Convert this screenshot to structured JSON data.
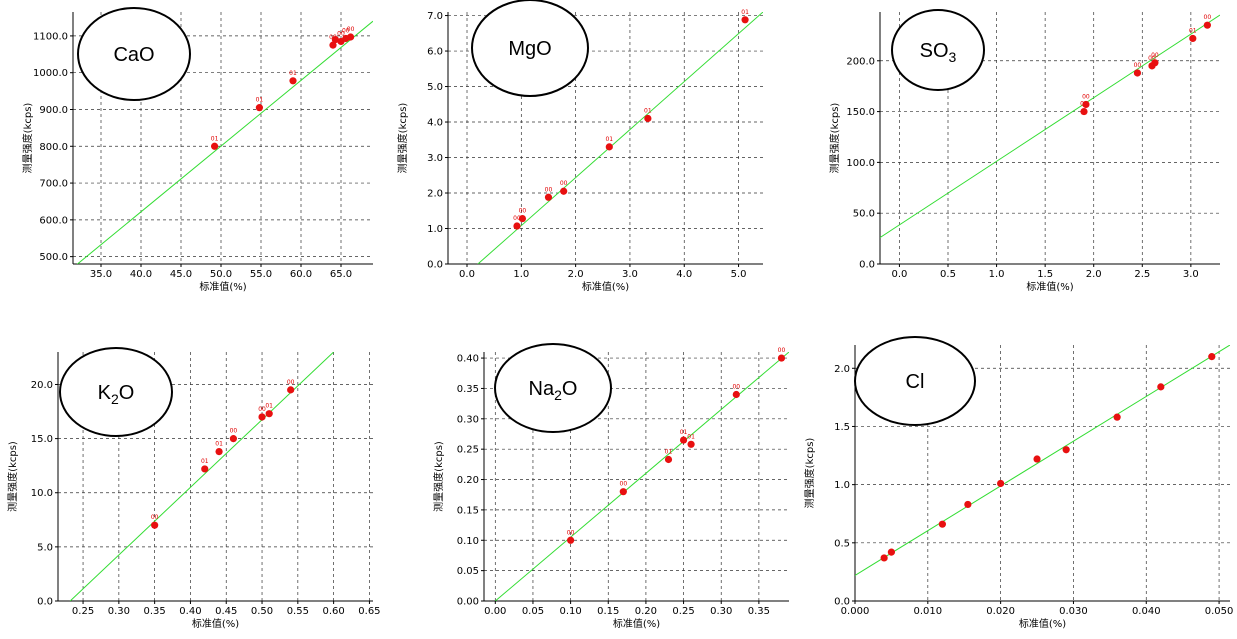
{
  "colors": {
    "point": "#e81010",
    "fit_line": "#33dd33",
    "point_label": "#e00000",
    "grid": "#000000"
  },
  "chart_data": [
    {
      "type": "scatter",
      "badge": {
        "main": "CaO",
        "sub": ""
      },
      "xlabel": "标准值(%)",
      "ylabel": "测量强度(kcps)",
      "xlim": [
        31.5,
        69.0
      ],
      "ylim": [
        480,
        1165
      ],
      "xticks": [
        "35.0",
        "40.0",
        "45.0",
        "50.0",
        "55.0",
        "60.0",
        "65.0"
      ],
      "yticks": [
        "500.0",
        "600.0",
        "700.0",
        "800.0",
        "900.0",
        "1000.0",
        "1100.0"
      ],
      "grid": true,
      "fit_line": [
        [
          31.5,
          470
        ],
        [
          69.0,
          1140
        ]
      ],
      "points": [
        {
          "x": 49.2,
          "y": 800,
          "label": "01"
        },
        {
          "x": 54.8,
          "y": 905,
          "label": "01"
        },
        {
          "x": 59.0,
          "y": 978,
          "label": "01"
        },
        {
          "x": 64.0,
          "y": 1075,
          "label": "00"
        },
        {
          "x": 64.3,
          "y": 1090,
          "label": ""
        },
        {
          "x": 65.0,
          "y": 1085,
          "label": "00"
        },
        {
          "x": 65.6,
          "y": 1093,
          "label": "00"
        },
        {
          "x": 66.2,
          "y": 1097,
          "label": "00"
        }
      ]
    },
    {
      "type": "scatter",
      "badge": {
        "main": "MgO",
        "sub": ""
      },
      "xlabel": "标准值(%)",
      "ylabel": "测量强度(kcps)",
      "xlim": [
        -0.35,
        5.45
      ],
      "ylim": [
        0.0,
        7.1
      ],
      "xticks": [
        "0.0",
        "1.0",
        "2.0",
        "3.0",
        "4.0",
        "5.0"
      ],
      "yticks": [
        "0.0",
        "1.0",
        "2.0",
        "3.0",
        "4.0",
        "5.0",
        "6.0",
        "7.0"
      ],
      "grid": true,
      "fit_line": [
        [
          0.2,
          0.0
        ],
        [
          5.45,
          7.1
        ]
      ],
      "points": [
        {
          "x": 0.92,
          "y": 1.07,
          "label": "00"
        },
        {
          "x": 1.02,
          "y": 1.28,
          "label": "00"
        },
        {
          "x": 1.5,
          "y": 1.88,
          "label": "00"
        },
        {
          "x": 1.78,
          "y": 2.05,
          "label": "00"
        },
        {
          "x": 2.62,
          "y": 3.3,
          "label": "01"
        },
        {
          "x": 3.33,
          "y": 4.1,
          "label": "01"
        },
        {
          "x": 5.12,
          "y": 6.88,
          "label": "01"
        }
      ]
    },
    {
      "type": "scatter",
      "badge": {
        "main": "SO",
        "sub": "3"
      },
      "xlabel": "标准值(%)",
      "ylabel": "测量强度(kcps)",
      "xlim": [
        -0.2,
        3.3
      ],
      "ylim": [
        0.0,
        248
      ],
      "xticks": [
        "0.0",
        "0.5",
        "1.0",
        "1.5",
        "2.0",
        "2.5",
        "3.0"
      ],
      "yticks": [
        "0.0",
        "50.0",
        "100.0",
        "150.0",
        "200.0"
      ],
      "grid": true,
      "fit_line": [
        [
          -0.2,
          26
        ],
        [
          3.3,
          245
        ]
      ],
      "points": [
        {
          "x": 1.9,
          "y": 150,
          "label": "00"
        },
        {
          "x": 1.92,
          "y": 157,
          "label": "00"
        },
        {
          "x": 2.45,
          "y": 188,
          "label": "00"
        },
        {
          "x": 2.6,
          "y": 195,
          "label": "00"
        },
        {
          "x": 2.63,
          "y": 198,
          "label": "00"
        },
        {
          "x": 3.02,
          "y": 222,
          "label": "01"
        },
        {
          "x": 3.17,
          "y": 235,
          "label": "00"
        }
      ]
    },
    {
      "type": "scatter",
      "badge": {
        "main": "K",
        "sub": "2",
        "post": "O"
      },
      "xlabel": "标准值(%)",
      "ylabel": "测量强度(kcps)",
      "xlim": [
        0.215,
        0.655
      ],
      "ylim": [
        0.0,
        23.0
      ],
      "xticks": [
        "0.25",
        "0.30",
        "0.35",
        "0.40",
        "0.45",
        "0.50",
        "0.55",
        "0.60",
        "0.65"
      ],
      "yticks": [
        "0.0",
        "5.0",
        "10.0",
        "15.0",
        "20.0"
      ],
      "grid": true,
      "fit_line": [
        [
          0.232,
          0.0
        ],
        [
          0.6,
          23.0
        ]
      ],
      "points": [
        {
          "x": 0.35,
          "y": 7.0,
          "label": "00"
        },
        {
          "x": 0.42,
          "y": 12.2,
          "label": "01"
        },
        {
          "x": 0.44,
          "y": 13.8,
          "label": "01"
        },
        {
          "x": 0.46,
          "y": 15.0,
          "label": "00"
        },
        {
          "x": 0.5,
          "y": 17.0,
          "label": "00"
        },
        {
          "x": 0.51,
          "y": 17.3,
          "label": "01"
        },
        {
          "x": 0.54,
          "y": 19.5,
          "label": "00"
        }
      ]
    },
    {
      "type": "scatter",
      "badge": {
        "main": "Na",
        "sub": "2",
        "post": "O"
      },
      "xlabel": "标准值(%)",
      "ylabel": "测量强度(kcps)",
      "xlim": [
        -0.015,
        0.39
      ],
      "ylim": [
        0.0,
        0.41
      ],
      "xticks": [
        "0.00",
        "0.05",
        "0.10",
        "0.15",
        "0.20",
        "0.25",
        "0.30",
        "0.35"
      ],
      "yticks": [
        "0.00",
        "0.05",
        "0.10",
        "0.15",
        "0.20",
        "0.25",
        "0.30",
        "0.35",
        "0.40"
      ],
      "grid": true,
      "fit_line": [
        [
          0.0,
          0.0
        ],
        [
          0.39,
          0.41
        ]
      ],
      "points": [
        {
          "x": 0.1,
          "y": 0.1,
          "label": "00"
        },
        {
          "x": 0.17,
          "y": 0.18,
          "label": "00"
        },
        {
          "x": 0.23,
          "y": 0.233,
          "label": "01"
        },
        {
          "x": 0.25,
          "y": 0.265,
          "label": "01"
        },
        {
          "x": 0.26,
          "y": 0.258,
          "label": "01"
        },
        {
          "x": 0.32,
          "y": 0.34,
          "label": "00"
        },
        {
          "x": 0.38,
          "y": 0.4,
          "label": "00"
        }
      ]
    },
    {
      "type": "scatter",
      "badge": {
        "main": "Cl",
        "sub": ""
      },
      "xlabel": "标准值(%)",
      "ylabel": "测量强度(kcps)",
      "xlim": [
        0.0,
        0.0515
      ],
      "ylim": [
        0.0,
        2.2
      ],
      "xticks": [
        "0.000",
        "0.010",
        "0.020",
        "0.030",
        "0.040",
        "0.050"
      ],
      "yticks": [
        "0.0",
        "0.5",
        "1.0",
        "1.5",
        "2.0"
      ],
      "grid": true,
      "fit_line": [
        [
          0.0,
          0.22
        ],
        [
          0.0515,
          2.2
        ]
      ],
      "points": [
        {
          "x": 0.004,
          "y": 0.37,
          "label": ""
        },
        {
          "x": 0.005,
          "y": 0.42,
          "label": ""
        },
        {
          "x": 0.012,
          "y": 0.66,
          "label": ""
        },
        {
          "x": 0.0155,
          "y": 0.83,
          "label": ""
        },
        {
          "x": 0.02,
          "y": 1.01,
          "label": ""
        },
        {
          "x": 0.025,
          "y": 1.22,
          "label": ""
        },
        {
          "x": 0.029,
          "y": 1.3,
          "label": ""
        },
        {
          "x": 0.036,
          "y": 1.58,
          "label": ""
        },
        {
          "x": 0.042,
          "y": 1.84,
          "label": ""
        },
        {
          "x": 0.049,
          "y": 2.1,
          "label": ""
        }
      ]
    }
  ]
}
